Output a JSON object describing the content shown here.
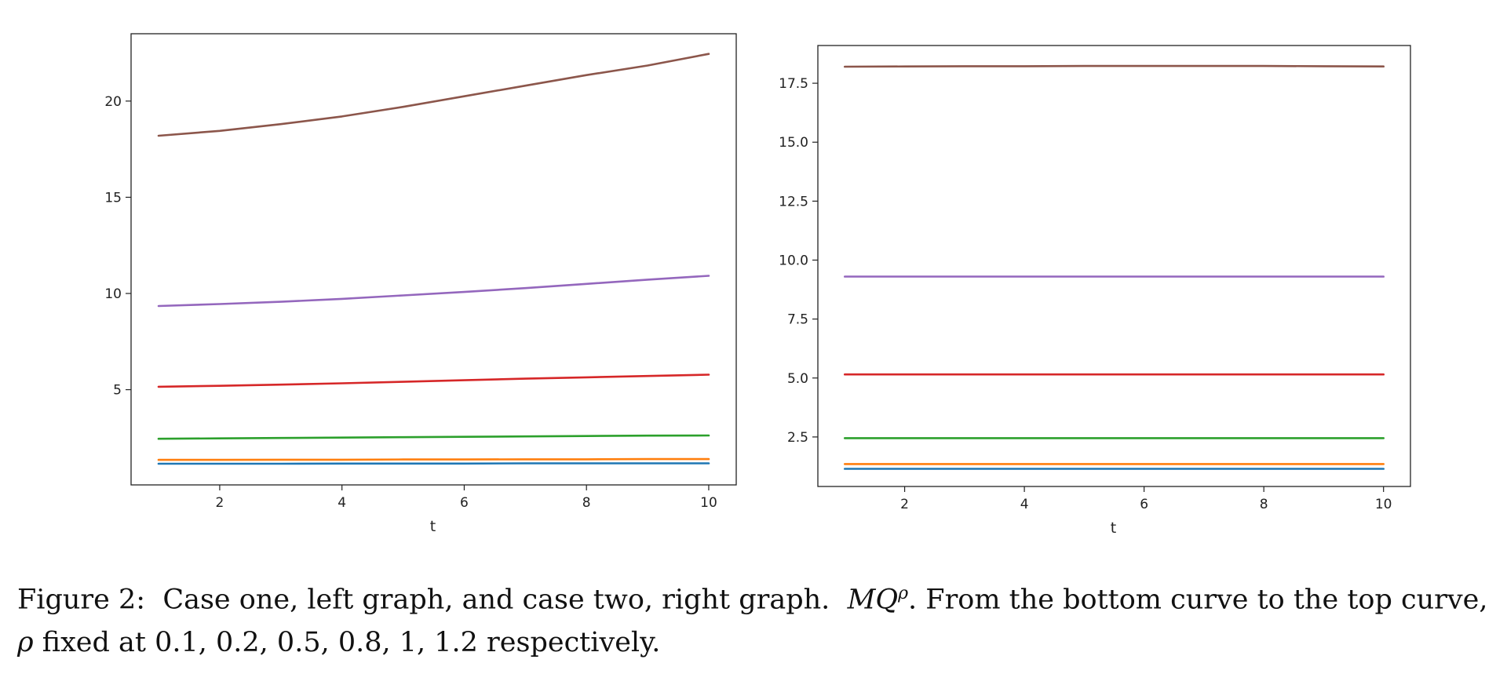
{
  "chart_data": [
    {
      "type": "line",
      "xlabel": "t",
      "ylabel": "",
      "title": "",
      "grid": false,
      "xlim": [
        0.55,
        10.45
      ],
      "ylim": [
        0.05,
        23.5
      ],
      "xticks": [
        2,
        4,
        6,
        8,
        10
      ],
      "yticks": [
        5,
        10,
        15,
        20
      ],
      "ytick_labels": [
        "5",
        "10",
        "15",
        "20"
      ],
      "x": [
        1,
        2,
        3,
        4,
        5,
        6,
        7,
        8,
        9,
        10
      ],
      "series": [
        {
          "color": "#1f77b4",
          "values": [
            1.15,
            1.15,
            1.15,
            1.16,
            1.16,
            1.16,
            1.17,
            1.17,
            1.17,
            1.17
          ]
        },
        {
          "color": "#ff7f0e",
          "values": [
            1.35,
            1.35,
            1.36,
            1.36,
            1.37,
            1.37,
            1.38,
            1.38,
            1.39,
            1.39
          ]
        },
        {
          "color": "#2ca02c",
          "values": [
            2.45,
            2.47,
            2.49,
            2.51,
            2.53,
            2.55,
            2.57,
            2.59,
            2.61,
            2.62
          ]
        },
        {
          "color": "#d62728",
          "values": [
            5.15,
            5.2,
            5.26,
            5.33,
            5.41,
            5.49,
            5.57,
            5.64,
            5.71,
            5.78
          ]
        },
        {
          "color": "#9467bd",
          "values": [
            9.35,
            9.45,
            9.57,
            9.72,
            9.9,
            10.08,
            10.28,
            10.5,
            10.72,
            10.92
          ]
        },
        {
          "color": "#8c564b",
          "values": [
            18.2,
            18.45,
            18.8,
            19.2,
            19.7,
            20.25,
            20.8,
            21.35,
            21.85,
            22.45
          ]
        }
      ]
    },
    {
      "type": "line",
      "xlabel": "t",
      "ylabel": "",
      "title": "",
      "grid": false,
      "xlim": [
        0.55,
        10.45
      ],
      "ylim": [
        0.4,
        19.1
      ],
      "xticks": [
        2,
        4,
        6,
        8,
        10
      ],
      "yticks": [
        2.5,
        5.0,
        7.5,
        10.0,
        12.5,
        15.0,
        17.5
      ],
      "ytick_labels": [
        "2.5",
        "5.0",
        "7.5",
        "10.0",
        "12.5",
        "15.0",
        "17.5"
      ],
      "x": [
        1,
        2,
        3,
        4,
        5,
        6,
        7,
        8,
        9,
        10
      ],
      "series": [
        {
          "color": "#1f77b4",
          "values": [
            1.15,
            1.15,
            1.15,
            1.15,
            1.15,
            1.15,
            1.15,
            1.15,
            1.15,
            1.15
          ]
        },
        {
          "color": "#ff7f0e",
          "values": [
            1.35,
            1.35,
            1.35,
            1.35,
            1.35,
            1.35,
            1.35,
            1.35,
            1.35,
            1.35
          ]
        },
        {
          "color": "#2ca02c",
          "values": [
            2.45,
            2.45,
            2.45,
            2.45,
            2.45,
            2.45,
            2.45,
            2.45,
            2.45,
            2.45
          ]
        },
        {
          "color": "#d62728",
          "values": [
            5.15,
            5.15,
            5.15,
            5.15,
            5.15,
            5.15,
            5.15,
            5.15,
            5.15,
            5.15
          ]
        },
        {
          "color": "#9467bd",
          "values": [
            9.3,
            9.3,
            9.3,
            9.3,
            9.3,
            9.3,
            9.3,
            9.3,
            9.3,
            9.3
          ]
        },
        {
          "color": "#8c564b",
          "values": [
            18.2,
            18.21,
            18.22,
            18.22,
            18.23,
            18.23,
            18.23,
            18.23,
            18.22,
            18.21
          ]
        }
      ]
    }
  ],
  "caption": {
    "label": "Figure 2:",
    "text_a": "Case one, left graph, and case two, right graph.",
    "math_mq": "MQ",
    "math_rho_sup": "ρ",
    "text_b": ". From the bottom curve to the top curve,",
    "math_rho": "ρ",
    "text_c": "fixed at 0.1, 0.2, 0.5, 0.8, 1, 1.2 respectively."
  }
}
